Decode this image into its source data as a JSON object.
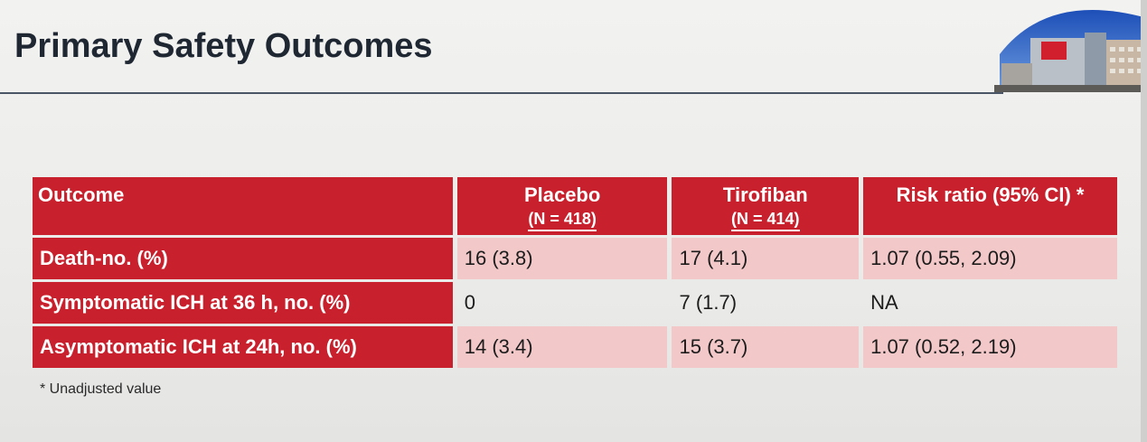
{
  "slide": {
    "title": "Primary Safety Outcomes",
    "footnote": "* Unadjusted value"
  },
  "table": {
    "headers": [
      {
        "label": "Outcome",
        "sub": ""
      },
      {
        "label": "Placebo",
        "sub": "(N = 418)"
      },
      {
        "label": "Tirofiban",
        "sub": "(N = 414)"
      },
      {
        "label": "Risk ratio (95% CI) *",
        "sub": ""
      }
    ],
    "rows": [
      {
        "outcome": "Death-no. (%)",
        "placebo": "16 (3.8)",
        "tirofiban": "17 (4.1)",
        "risk_ratio": "1.07 (0.55, 2.09)"
      },
      {
        "outcome": "Symptomatic ICH at 36 h, no. (%)",
        "placebo": "0",
        "tirofiban": "7 (1.7)",
        "risk_ratio": "NA"
      },
      {
        "outcome": "Asymptomatic ICH at 24h, no. (%)",
        "placebo": "14 (3.4)",
        "tirofiban": "15 (3.7)",
        "risk_ratio": "1.07 (0.52, 2.19)"
      }
    ]
  },
  "colors": {
    "header_red": "#c8202c",
    "row_shade": "#f2c8c9",
    "title_color": "#1f2733"
  }
}
